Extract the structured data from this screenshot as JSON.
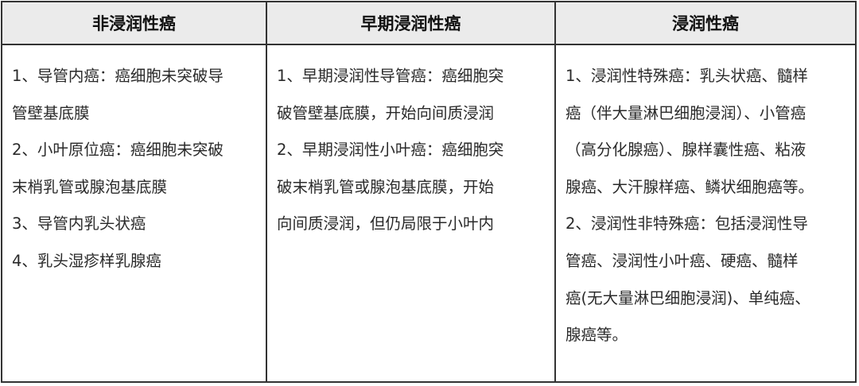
{
  "table": {
    "columns": [
      {
        "header": "非浸润性癌",
        "lines": [
          "1、导管内癌：癌细胞未突破导",
          "管壁基底膜",
          "2、小叶原位癌：癌细胞未突破",
          "末梢乳管或腺泡基底膜",
          "3、导管内乳头状癌",
          "4、乳头湿疹样乳腺癌"
        ]
      },
      {
        "header": "早期浸润性癌",
        "lines": [
          "1、早期浸润性导管癌：癌细胞突",
          "破管壁基底膜，开始向间质浸润",
          "2、早期浸润性小叶癌：癌细胞突",
          "破末梢乳管或腺泡基底膜，开始",
          "向间质浸润，但仍局限于小叶内"
        ]
      },
      {
        "header": "浸润性癌",
        "lines": [
          "1、浸润性特殊癌：乳头状癌、髓样",
          "癌（伴大量淋巴细胞浸润）、小管癌",
          "（高分化腺癌）、腺样囊性癌、粘液",
          "腺癌、大汗腺样癌、鳞状细胞癌等。",
          "2、浸润性非特殊癌：包括浸润性导",
          "管癌、浸润性小叶癌、硬癌、髓样",
          "癌(无大量淋巴细胞浸润)、单纯癌、",
          "腺癌等。"
        ]
      }
    ],
    "colors": {
      "header_bg": "#ebebeb",
      "border": "#333333"
    }
  }
}
